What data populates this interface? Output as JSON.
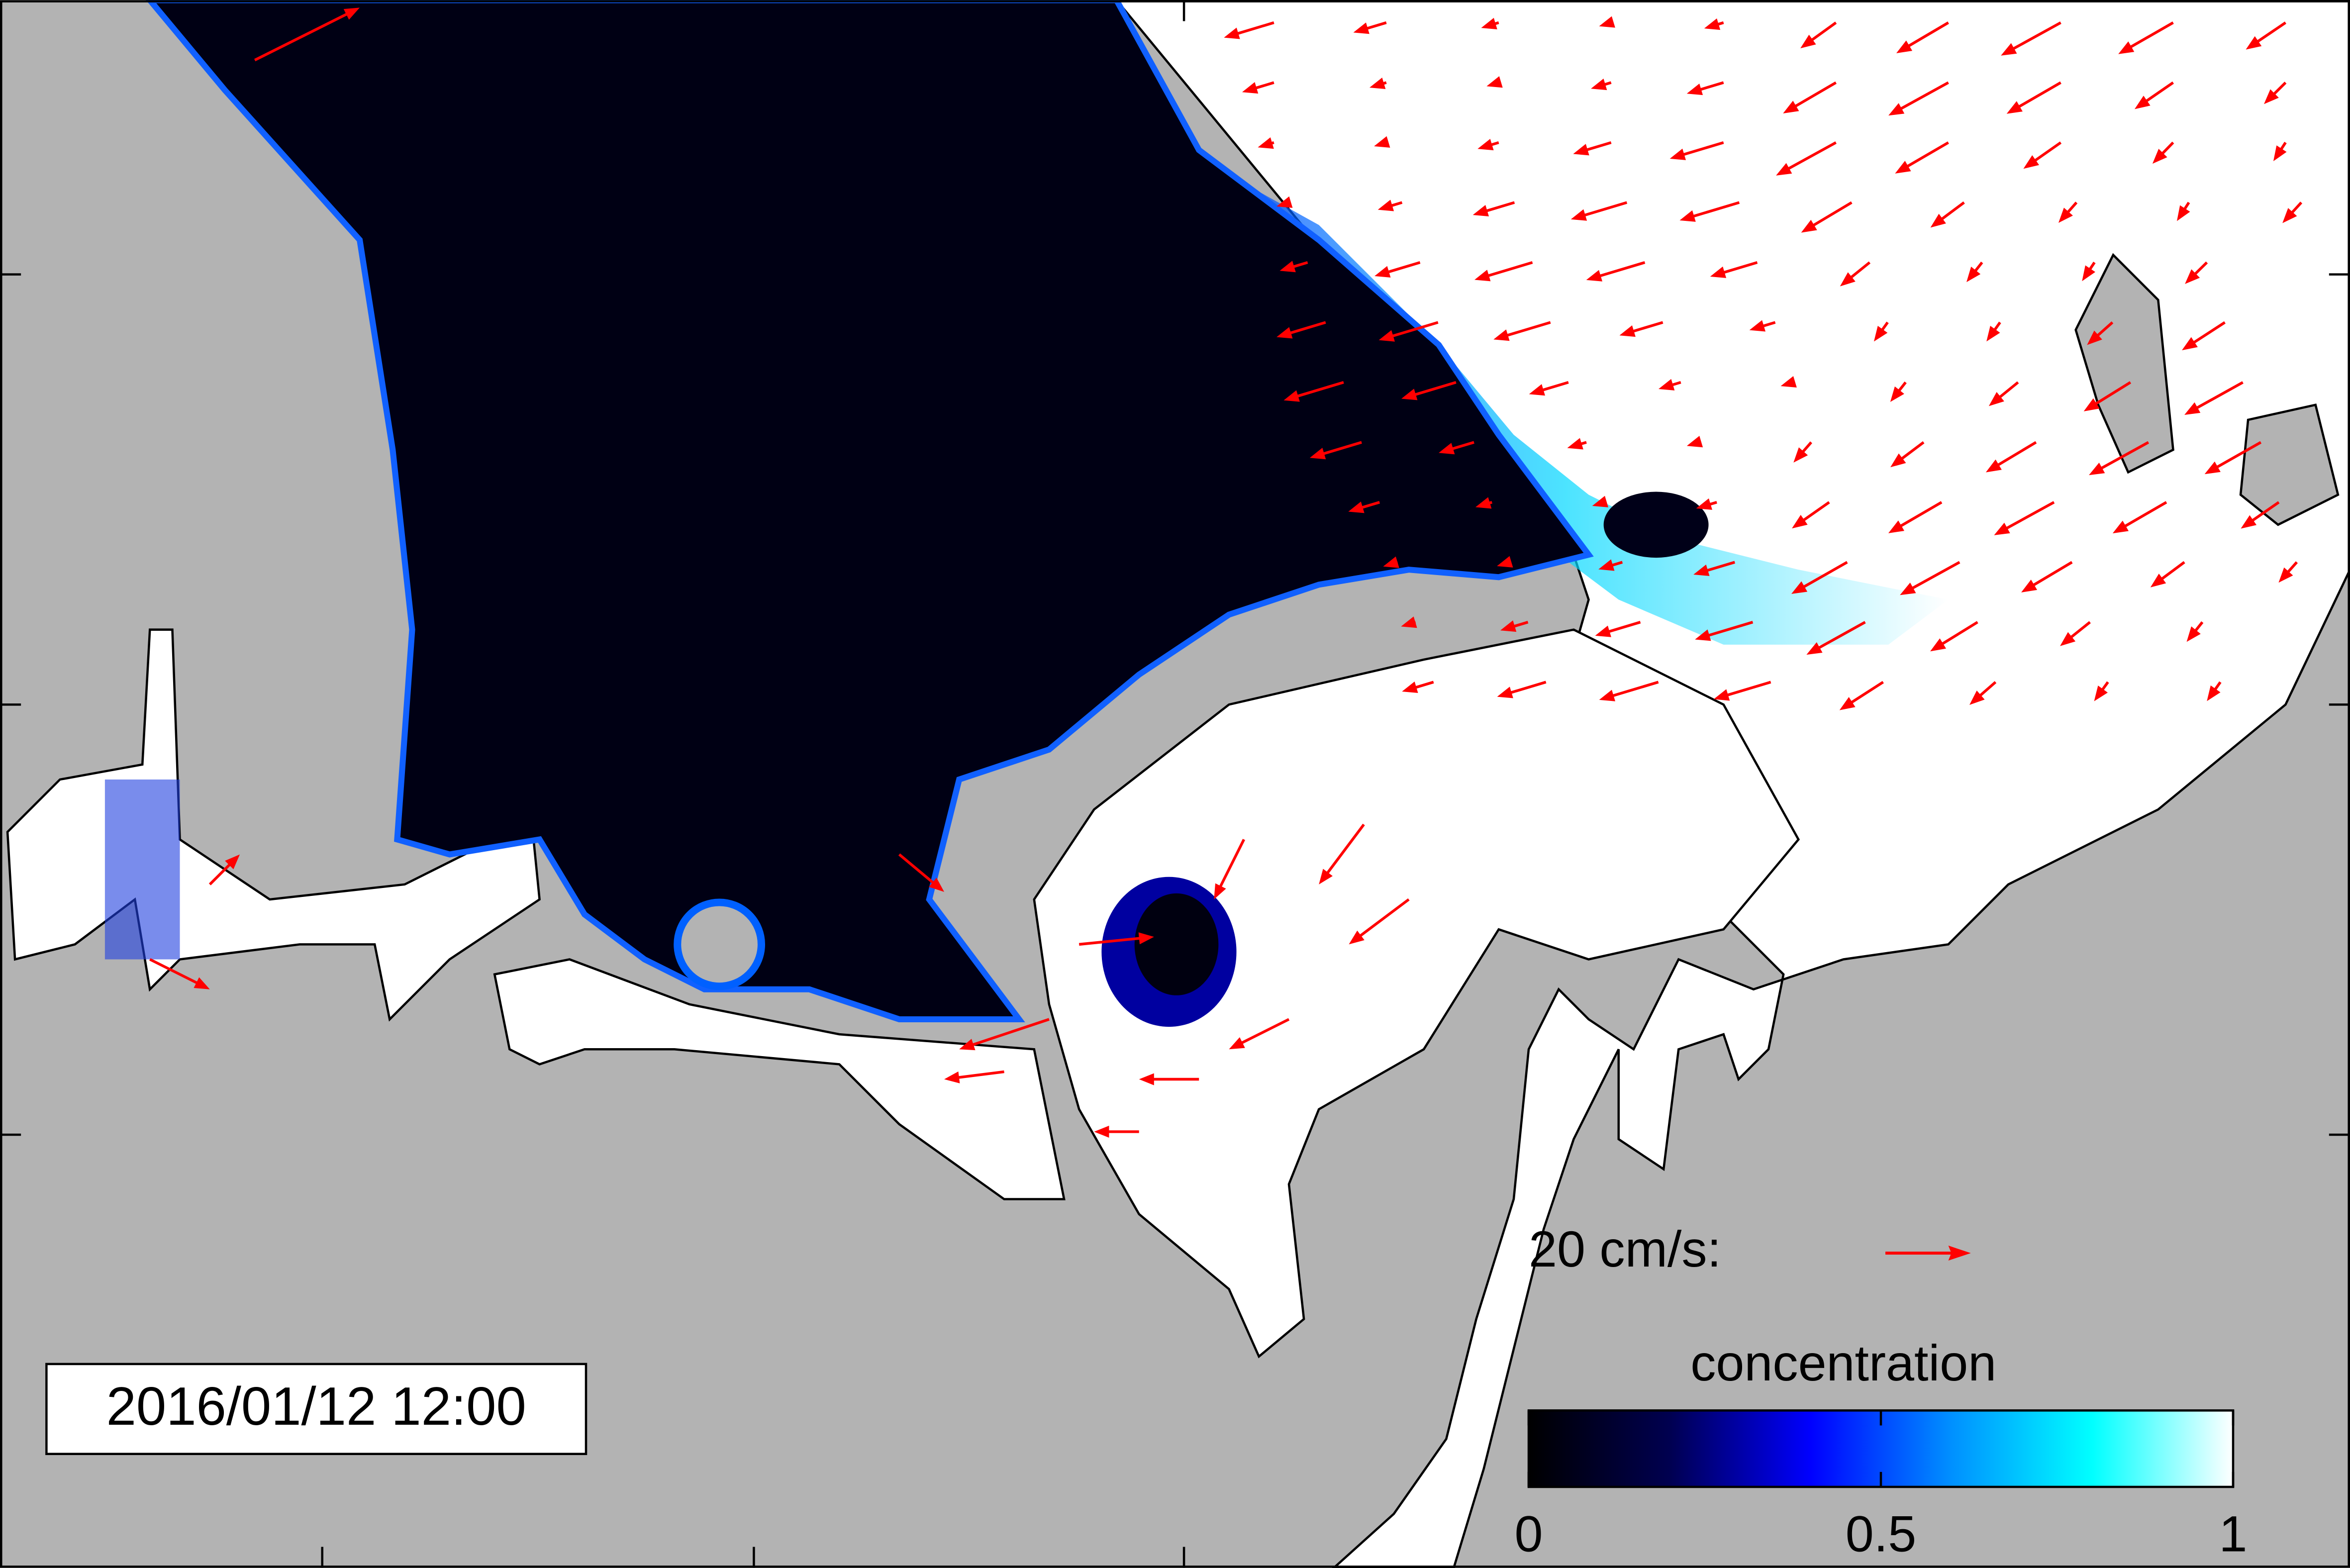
{
  "timestamp": "2016/01/12 12:00",
  "scale_arrow": {
    "label": "20 cm/s:"
  },
  "colorbar": {
    "title": "concentration",
    "range": [
      0,
      1
    ],
    "ticks": [
      0,
      0.5,
      1
    ]
  }
}
